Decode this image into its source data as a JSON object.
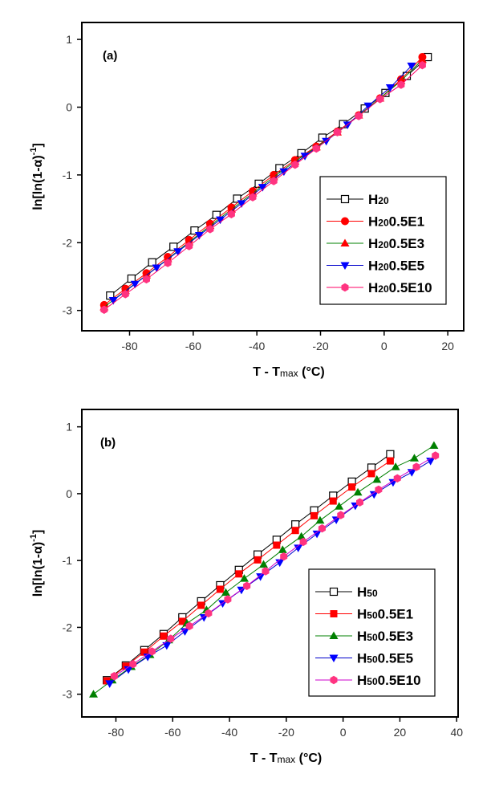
{
  "chart_data": [
    {
      "type": "line",
      "panel_label": "(a)",
      "xlabel": {
        "main": "T - T",
        "sub": "max",
        "unit": " (°C)"
      },
      "ylabel": {
        "main": "ln[ln(1-α)",
        "sup": "-1",
        "end": "]"
      },
      "xlim": [
        -95,
        25
      ],
      "ylim": [
        -3.3,
        1.25
      ],
      "xticks": [
        -80,
        -60,
        -40,
        -20,
        0,
        20
      ],
      "yticks": [
        1,
        0,
        -1,
        -2,
        -3
      ],
      "grid": false,
      "legend_position": "bottom-right",
      "series": [
        {
          "name": "H20",
          "name_parts": [
            "H",
            "20",
            ""
          ],
          "line_color": "#000000",
          "marker": "square-open",
          "marker_color": "#000000",
          "x": [
            -86.1,
            -79.4,
            -72.9,
            -66.2,
            -59.6,
            -52.7,
            -46.2,
            -39.4,
            -32.9,
            -26,
            -19.4,
            -12.9,
            -6.1,
            0.4,
            7.1,
            13.7
          ],
          "y": [
            -2.78,
            -2.53,
            -2.29,
            -2.06,
            -1.82,
            -1.59,
            -1.35,
            -1.13,
            -0.9,
            -0.68,
            -0.45,
            -0.25,
            -0.02,
            0.21,
            0.46,
            0.74
          ]
        },
        {
          "name": "H200.5E1",
          "name_parts": [
            "H",
            "20",
            "0.5E1"
          ],
          "line_color": "#ff0000",
          "marker": "circle",
          "marker_color": "#ff0000",
          "x": [
            -88,
            -81.3,
            -74.7,
            -68,
            -61.3,
            -54.7,
            -48,
            -41.3,
            -34.7,
            -28,
            -21.3,
            -14.7,
            -8,
            -1.3,
            5.3,
            12
          ],
          "y": [
            -2.92,
            -2.68,
            -2.45,
            -2.21,
            -1.96,
            -1.72,
            -1.48,
            -1.24,
            -1.0,
            -0.78,
            -0.58,
            -0.36,
            -0.12,
            0.13,
            0.41,
            0.74
          ]
        },
        {
          "name": "H200.5E3",
          "name_parts": [
            "H",
            "20",
            "0.5E3"
          ],
          "line_color": "#008000",
          "marker": "triangle-up",
          "marker_color": "#ff0000",
          "x": [
            -88,
            -81.3,
            -74.7,
            -68,
            -61.3,
            -54.7,
            -48,
            -41.3,
            -34.7,
            -28,
            -21.3,
            -14.7,
            -8,
            -1.3,
            5.3,
            12
          ],
          "y": [
            -2.95,
            -2.71,
            -2.48,
            -2.24,
            -1.99,
            -1.75,
            -1.51,
            -1.27,
            -1.03,
            -0.8,
            -0.59,
            -0.37,
            -0.12,
            0.13,
            0.39,
            0.7
          ]
        },
        {
          "name": "H200.5E5",
          "name_parts": [
            "H",
            "20",
            "0.5E5"
          ],
          "line_color": "#0000cc",
          "marker": "triangle-down",
          "marker_color": "#0000ff",
          "x": [
            -85.1,
            -78.3,
            -71.5,
            -64.8,
            -58.1,
            -51.5,
            -44.8,
            -38.2,
            -31.5,
            -24.9,
            -18.2,
            -11.5,
            -5,
            1.9,
            8.6
          ],
          "y": [
            -2.85,
            -2.61,
            -2.37,
            -2.13,
            -1.89,
            -1.66,
            -1.42,
            -1.18,
            -0.95,
            -0.72,
            -0.5,
            -0.26,
            0.02,
            0.29,
            0.61
          ]
        },
        {
          "name": "H200.5E10",
          "name_parts": [
            "H",
            "20",
            "0.5E10"
          ],
          "line_color": "#ff0066",
          "marker": "hexagon",
          "marker_color": "#ff3380",
          "x": [
            -88,
            -81.3,
            -74.7,
            -68,
            -61.3,
            -54.7,
            -48,
            -41.3,
            -34.7,
            -28,
            -21.3,
            -14.7,
            -8,
            -1.3,
            5.3,
            12
          ],
          "y": [
            -2.99,
            -2.76,
            -2.54,
            -2.3,
            -2.05,
            -1.8,
            -1.58,
            -1.33,
            -1.09,
            -0.85,
            -0.61,
            -0.37,
            -0.13,
            0.12,
            0.33,
            0.62
          ]
        }
      ]
    },
    {
      "type": "line",
      "panel_label": "(b)",
      "xlabel": {
        "main": "T - T",
        "sub": "max",
        "unit": " (°C)"
      },
      "ylabel": {
        "main": "ln[ln(1-α)",
        "sup": "-1",
        "end": "]"
      },
      "xlim": [
        -92,
        40.5
      ],
      "ylim": [
        -3.34,
        1.26
      ],
      "xticks": [
        -80,
        -60,
        -40,
        -20,
        0,
        20,
        40
      ],
      "yticks": [
        1,
        0,
        -1,
        -2,
        -3
      ],
      "grid": false,
      "legend_position": "bottom-right",
      "series": [
        {
          "name": "H50",
          "name_parts": [
            "H",
            "50",
            ""
          ],
          "line_color": "#000000",
          "marker": "square-open",
          "marker_color": "#000000",
          "x": [
            -83.2,
            -76.5,
            -70,
            -63.2,
            -56.6,
            -50,
            -43.3,
            -36.7,
            -30.1,
            -23.4,
            -16.8,
            -10.2,
            -3.5,
            3.1,
            10,
            16.6
          ],
          "y": [
            -2.79,
            -2.57,
            -2.34,
            -2.1,
            -1.85,
            -1.61,
            -1.37,
            -1.14,
            -0.91,
            -0.69,
            -0.46,
            -0.25,
            -0.03,
            0.18,
            0.39,
            0.59
          ]
        },
        {
          "name": "H500.5E1",
          "name_parts": [
            "H",
            "50",
            "0.5E1"
          ],
          "line_color": "#ff0000",
          "marker": "square",
          "marker_color": "#ff0000",
          "x": [
            -83.2,
            -76.5,
            -70,
            -63.2,
            -56.6,
            -50,
            -43.3,
            -36.7,
            -30.1,
            -23.4,
            -16.8,
            -10.2,
            -3.5,
            3.1,
            10,
            16.6
          ],
          "y": [
            -2.8,
            -2.58,
            -2.37,
            -2.13,
            -1.91,
            -1.67,
            -1.43,
            -1.2,
            -0.99,
            -0.77,
            -0.55,
            -0.33,
            -0.11,
            0.1,
            0.3,
            0.49
          ]
        },
        {
          "name": "H500.5E3",
          "name_parts": [
            "H",
            "50",
            "0.5E3"
          ],
          "line_color": "#008000",
          "marker": "triangle-up",
          "marker_color": "#008000",
          "x": [
            -87.9,
            -81.3,
            -74.6,
            -68,
            -61.4,
            -55,
            -48.1,
            -41.3,
            -34.8,
            -28,
            -21.3,
            -14.7,
            -8.1,
            -1.4,
            5.2,
            11.9,
            18.5,
            25.1,
            32
          ],
          "y": [
            -3.0,
            -2.79,
            -2.59,
            -2.41,
            -2.19,
            -1.94,
            -1.74,
            -1.48,
            -1.27,
            -1.06,
            -0.84,
            -0.64,
            -0.4,
            -0.19,
            0.02,
            0.21,
            0.4,
            0.53,
            0.72
          ]
        },
        {
          "name": "H500.5E5",
          "name_parts": [
            "H",
            "50",
            "0.5E5"
          ],
          "line_color": "#0000cc",
          "marker": "triangle-down",
          "marker_color": "#0000ff",
          "x": [
            -82.2,
            -75.6,
            -68.8,
            -62.1,
            -55.7,
            -49,
            -42.4,
            -35.8,
            -29.1,
            -22.3,
            -15.8,
            -9.2,
            -2.4,
            4.3,
            10.9,
            17.6,
            24.2,
            30.8
          ],
          "y": [
            -2.84,
            -2.63,
            -2.44,
            -2.27,
            -2.06,
            -1.85,
            -1.64,
            -1.44,
            -1.24,
            -1.03,
            -0.81,
            -0.6,
            -0.39,
            -0.18,
            -0.01,
            0.17,
            0.32,
            0.49
          ]
        },
        {
          "name": "H500.5E10",
          "name_parts": [
            "H",
            "50",
            "0.5E10"
          ],
          "line_color": "#cc00cc",
          "marker": "hexagon",
          "marker_color": "#ff3380",
          "x": [
            -80.6,
            -74,
            -67.3,
            -60.7,
            -54.1,
            -47.4,
            -40.6,
            -33.9,
            -27.3,
            -20.9,
            -14,
            -7.4,
            -0.8,
            5.9,
            12.5,
            19.1,
            25.8,
            32.5
          ],
          "y": [
            -2.73,
            -2.55,
            -2.36,
            -2.17,
            -1.98,
            -1.79,
            -1.58,
            -1.38,
            -1.16,
            -0.94,
            -0.72,
            -0.52,
            -0.32,
            -0.13,
            0.06,
            0.23,
            0.4,
            0.57
          ]
        }
      ]
    }
  ]
}
